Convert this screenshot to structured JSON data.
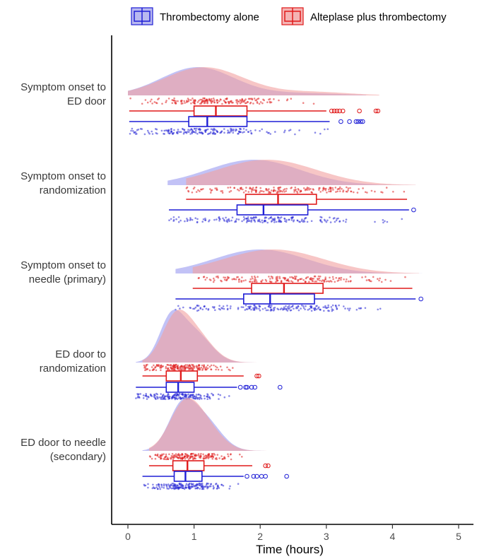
{
  "chart_data": {
    "type": "raincloud",
    "title": "",
    "xlabel": "Time (hours)",
    "ylabel": "",
    "xlim": [
      -0.2,
      5.2
    ],
    "xticks": [
      0,
      1,
      2,
      3,
      4,
      5
    ],
    "tick_labels": [
      "0",
      "1",
      "2",
      "3",
      "4",
      "5"
    ],
    "legend": {
      "position": "top",
      "entries": [
        {
          "name": "Thrombectomy alone",
          "color": "#1f1fd6",
          "fill": "#b8b8f0"
        },
        {
          "name": "Alteplase plus thrombectomy",
          "color": "#e01a1a",
          "fill": "#f4b3b3"
        }
      ]
    },
    "categories": [
      {
        "label": [
          "Symptom onset to",
          "ED door"
        ],
        "series": [
          {
            "name": "Thrombectomy alone",
            "box": {
              "whisker_low": 0.02,
              "q1": 0.92,
              "median": 1.2,
              "q3": 1.8,
              "whisker_high": 3.05
            },
            "outliers": [
              3.22,
              3.35,
              3.45,
              3.48,
              3.52,
              3.55
            ],
            "density": {
              "range": [
                0.0,
                3.6
              ],
              "peaks": [
                [
                  1.05,
                  1.0
                ],
                [
                  2.6,
                  0.08
                ]
              ],
              "spread": [
                0.55,
                0.6
              ]
            }
          },
          {
            "name": "Alteplase plus thrombectomy",
            "box": {
              "whisker_low": 0.02,
              "q1": 1.0,
              "median": 1.33,
              "q3": 1.8,
              "whisker_high": 3.0
            },
            "outliers": [
              3.08,
              3.12,
              3.16,
              3.2,
              3.25,
              3.5,
              3.75,
              3.78
            ],
            "density": {
              "range": [
                0.0,
                3.8
              ],
              "peaks": [
                [
                  1.15,
                  1.0
                ],
                [
                  2.8,
                  0.12
                ]
              ],
              "spread": [
                0.6,
                0.55
              ]
            }
          }
        ]
      },
      {
        "label": [
          "Symptom onset to",
          "randomization"
        ],
        "series": [
          {
            "name": "Thrombectomy alone",
            "box": {
              "whisker_low": 0.62,
              "q1": 1.65,
              "median": 2.05,
              "q3": 2.72,
              "whisker_high": 4.25
            },
            "outliers": [
              4.32
            ],
            "density": {
              "range": [
                0.6,
                4.35
              ],
              "peaks": [
                [
                  1.9,
                  1.0
                ]
              ],
              "spread": [
                0.7
              ]
            }
          },
          {
            "name": "Alteplase plus thrombectomy",
            "box": {
              "whisker_low": 0.88,
              "q1": 1.78,
              "median": 2.27,
              "q3": 2.85,
              "whisker_high": 4.22
            },
            "outliers": [],
            "density": {
              "range": [
                0.88,
                4.35
              ],
              "peaks": [
                [
                  2.1,
                  1.0
                ]
              ],
              "spread": [
                0.75
              ]
            }
          }
        ]
      },
      {
        "label": [
          "Symptom onset to",
          "needle (primary)"
        ],
        "series": [
          {
            "name": "Thrombectomy alone",
            "box": {
              "whisker_low": 0.72,
              "q1": 1.75,
              "median": 2.15,
              "q3": 2.82,
              "whisker_high": 4.35
            },
            "outliers": [
              4.43
            ],
            "density": {
              "range": [
                0.72,
                4.45
              ],
              "peaks": [
                [
                  2.0,
                  1.0
                ]
              ],
              "spread": [
                0.7
              ]
            }
          },
          {
            "name": "Alteplase plus thrombectomy",
            "box": {
              "whisker_low": 0.98,
              "q1": 1.87,
              "median": 2.36,
              "q3": 2.95,
              "whisker_high": 4.3
            },
            "outliers": [],
            "density": {
              "range": [
                0.98,
                4.4
              ],
              "peaks": [
                [
                  2.2,
                  1.0
                ]
              ],
              "spread": [
                0.75
              ]
            }
          }
        ]
      },
      {
        "label": [
          "ED door to",
          "randomization"
        ],
        "series": [
          {
            "name": "Thrombectomy alone",
            "box": {
              "whisker_low": 0.12,
              "q1": 0.58,
              "median": 0.76,
              "q3": 1.0,
              "whisker_high": 1.65
            },
            "outliers": [
              1.7,
              1.78,
              1.8,
              1.87,
              1.92,
              2.3
            ],
            "density": {
              "range": [
                0.12,
                2.3
              ],
              "peaks": [
                [
                  0.65,
                  1.0
                ],
                [
                  1.0,
                  0.75
                ]
              ],
              "spread": [
                0.18,
                0.25
              ]
            }
          },
          {
            "name": "Alteplase plus thrombectomy",
            "box": {
              "whisker_low": 0.22,
              "q1": 0.58,
              "median": 0.8,
              "q3": 1.05,
              "whisker_high": 1.75
            },
            "outliers": [
              1.95,
              1.98
            ],
            "density": {
              "range": [
                0.22,
                2.0
              ],
              "peaks": [
                [
                  0.7,
                  0.95
                ],
                [
                  1.0,
                  0.8
                ]
              ],
              "spread": [
                0.2,
                0.26
              ]
            }
          }
        ]
      },
      {
        "label": [
          "ED door to needle",
          "(secondary)"
        ],
        "series": [
          {
            "name": "Thrombectomy alone",
            "box": {
              "whisker_low": 0.22,
              "q1": 0.7,
              "median": 0.87,
              "q3": 1.12,
              "whisker_high": 1.75
            },
            "outliers": [
              1.8,
              1.9,
              1.95,
              2.02,
              2.08,
              2.4
            ],
            "density": {
              "range": [
                0.22,
                2.4
              ],
              "peaks": [
                [
                  0.8,
                  1.0
                ],
                [
                  1.15,
                  0.8
                ]
              ],
              "spread": [
                0.2,
                0.25
              ]
            }
          },
          {
            "name": "Alteplase plus thrombectomy",
            "box": {
              "whisker_low": 0.32,
              "q1": 0.68,
              "median": 0.9,
              "q3": 1.15,
              "whisker_high": 1.88
            },
            "outliers": [
              2.08,
              2.12
            ],
            "density": {
              "range": [
                0.32,
                2.15
              ],
              "peaks": [
                [
                  0.82,
                  0.95
                ],
                [
                  1.1,
                  0.85
                ]
              ],
              "spread": [
                0.22,
                0.27
              ]
            }
          }
        ]
      }
    ]
  }
}
